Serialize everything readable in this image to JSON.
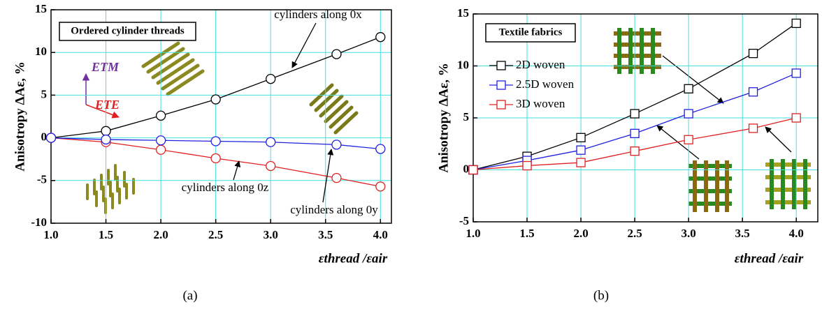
{
  "chart_data": [
    {
      "type": "line",
      "title": "Ordered cylinder threads",
      "x_label": "εthread /εair",
      "y_label": "Anisotropy ΔAε, %",
      "x": [
        1.0,
        1.5,
        2.0,
        2.5,
        3.0,
        3.6,
        4.0
      ],
      "series": [
        {
          "name": "cylinders along 0x",
          "color": "#000000",
          "values": [
            0,
            0.8,
            2.6,
            4.5,
            6.9,
            9.8,
            11.8
          ]
        },
        {
          "name": "cylinders along 0z",
          "color": "#e02020",
          "values": [
            0,
            -0.5,
            -1.4,
            -2.4,
            -3.3,
            -4.7,
            -5.7
          ]
        },
        {
          "name": "cylinders along 0y",
          "color": "#2020e0",
          "values": [
            0,
            -0.2,
            -0.3,
            -0.4,
            -0.5,
            -0.8,
            -1.3
          ]
        }
      ],
      "marker": "circle",
      "annotations": [
        "ETM",
        "ETE"
      ],
      "panel_label": "(a)",
      "xlim": [
        1.0,
        4.1
      ],
      "ylim": [
        -10,
        15
      ],
      "xticks": [
        {
          "value": 1.0,
          "label": "1.0"
        },
        {
          "value": 1.5,
          "label": "1.5"
        },
        {
          "value": 2.0,
          "label": "2.0"
        },
        {
          "value": 2.5,
          "label": "2.5"
        },
        {
          "value": 3.0,
          "label": "3.0"
        },
        {
          "value": 3.5,
          "label": "3.5"
        },
        {
          "value": 4.0,
          "label": "4.0"
        }
      ],
      "yticks": [
        -10,
        -5,
        0,
        5,
        10,
        15
      ],
      "grid": true
    },
    {
      "type": "line",
      "title": "Textile fabrics",
      "x_label": "εthread /εair",
      "y_label": "Anisotropy ΔAε, %",
      "x": [
        1.0,
        1.5,
        2.0,
        2.5,
        3.0,
        3.6,
        4.0
      ],
      "series": [
        {
          "name": "2D  woven",
          "color": "#000000",
          "values": [
            0,
            1.3,
            3.1,
            5.4,
            7.8,
            11.2,
            14.1
          ]
        },
        {
          "name": "2.5D  woven",
          "color": "#2020e0",
          "values": [
            0,
            0.9,
            1.9,
            3.5,
            5.4,
            7.5,
            9.3
          ]
        },
        {
          "name": "3D  woven",
          "color": "#e02020",
          "values": [
            0,
            0.4,
            0.7,
            1.8,
            2.9,
            4.0,
            5.0
          ]
        }
      ],
      "marker": "square",
      "legend": "upper left",
      "panel_label": "(b)",
      "xlim": [
        1.0,
        4.2
      ],
      "ylim": [
        -5,
        15
      ],
      "xticks": [
        {
          "value": 1.0,
          "label": "1.0"
        },
        {
          "value": 1.5,
          "label": "1.5"
        },
        {
          "value": 2.0,
          "label": "2.0"
        },
        {
          "value": 2.5,
          "label": "2.5"
        },
        {
          "value": 3.0,
          "label": "3.0"
        },
        {
          "value": 3.5,
          "label": "3.5"
        },
        {
          "value": 4.0,
          "label": "4.0"
        }
      ],
      "yticks": [
        -5,
        0,
        5,
        10,
        15
      ],
      "grid": true
    }
  ]
}
